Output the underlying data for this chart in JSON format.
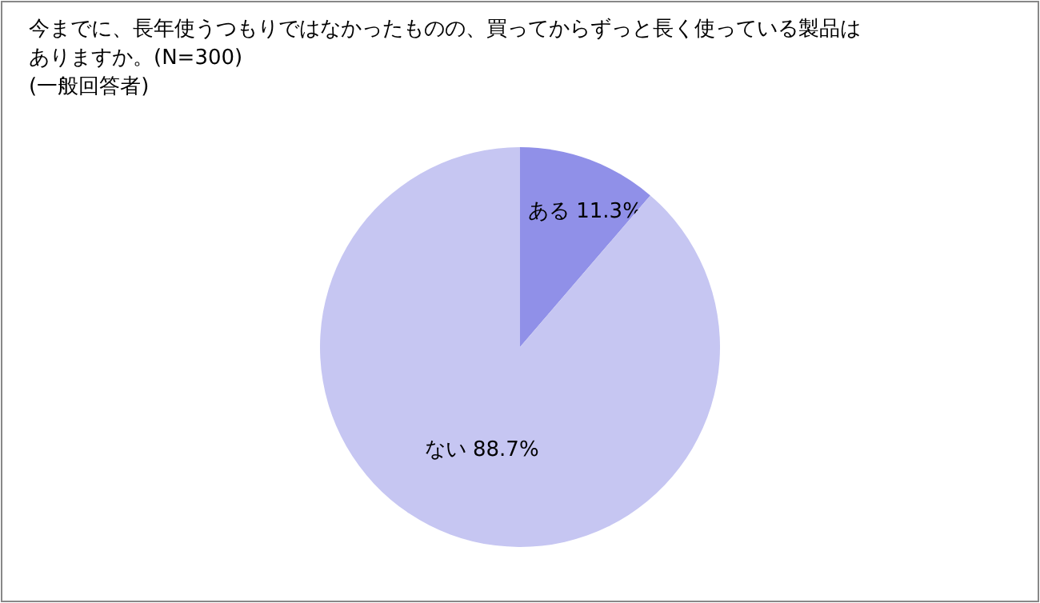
{
  "chart_data": {
    "type": "pie",
    "title": "今までに、長年使うつもりではなかったものの、買ってからずっと長く使っている製品はありますか。(N=300)",
    "subtitle": "(一般回答者)",
    "categories": [
      "ある",
      "ない"
    ],
    "values": [
      11.3,
      88.7
    ],
    "value_labels": [
      "11.3%",
      "88.7%"
    ],
    "colors": [
      "#9090e8",
      "#c6c6f2"
    ]
  }
}
